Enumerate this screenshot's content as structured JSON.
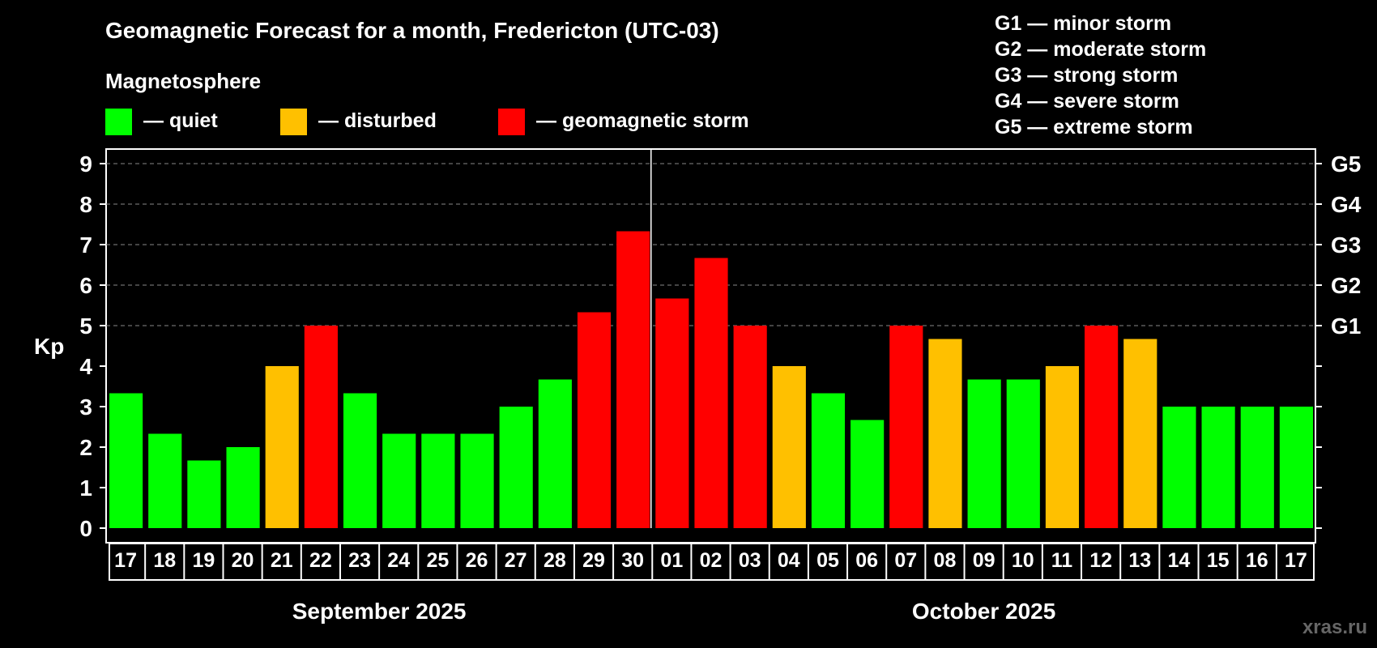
{
  "chart_data": {
    "type": "bar",
    "title": "Geomagnetic Forecast for a month, Fredericton (UTC-03)",
    "legend": {
      "heading": "Magnetosphere",
      "items": [
        {
          "label": "— quiet",
          "color": "#00ff00",
          "level": "quiet"
        },
        {
          "label": "— disturbed",
          "color": "#ffc000",
          "level": "disturbed"
        },
        {
          "label": "— geomagnetic storm",
          "color": "#ff0000",
          "level": "storm"
        }
      ]
    },
    "storm_scale": [
      "G1 — minor storm",
      "G2 — moderate storm",
      "G3 — strong storm",
      "G4 — severe storm",
      "G5 — extreme storm"
    ],
    "ylabel": "Kp",
    "ylim": [
      0,
      9
    ],
    "yticks": [
      "0",
      "1",
      "2",
      "3",
      "4",
      "5",
      "6",
      "7",
      "8",
      "9"
    ],
    "right_axis_labels": [
      {
        "kp": 5,
        "label": "G1"
      },
      {
        "kp": 6,
        "label": "G2"
      },
      {
        "kp": 7,
        "label": "G3"
      },
      {
        "kp": 8,
        "label": "G4"
      },
      {
        "kp": 9,
        "label": "G5"
      }
    ],
    "grid_levels": [
      5,
      6,
      7,
      8,
      9
    ],
    "categories": [
      "17",
      "18",
      "19",
      "20",
      "21",
      "22",
      "23",
      "24",
      "25",
      "26",
      "27",
      "28",
      "29",
      "30",
      "01",
      "02",
      "03",
      "04",
      "05",
      "06",
      "07",
      "08",
      "09",
      "10",
      "11",
      "12",
      "13",
      "14",
      "15",
      "16",
      "17"
    ],
    "values": [
      3.33,
      2.33,
      1.67,
      2.0,
      4.0,
      5.0,
      3.33,
      2.33,
      2.33,
      2.33,
      3.0,
      3.67,
      5.33,
      7.33,
      5.67,
      6.67,
      5.0,
      4.0,
      3.33,
      2.67,
      5.0,
      4.67,
      3.67,
      3.67,
      4.0,
      5.0,
      4.67,
      3.0,
      3.0,
      3.0,
      3.0
    ],
    "levels": [
      "quiet",
      "quiet",
      "quiet",
      "quiet",
      "disturbed",
      "storm",
      "quiet",
      "quiet",
      "quiet",
      "quiet",
      "quiet",
      "quiet",
      "storm",
      "storm",
      "storm",
      "storm",
      "storm",
      "disturbed",
      "quiet",
      "quiet",
      "storm",
      "disturbed",
      "quiet",
      "quiet",
      "disturbed",
      "storm",
      "disturbed",
      "quiet",
      "quiet",
      "quiet",
      "quiet"
    ],
    "months": [
      {
        "label": "September 2025",
        "start_index": 0,
        "end_index": 13
      },
      {
        "label": "October 2025",
        "start_index": 14,
        "end_index": 30
      }
    ],
    "month_divider_after_index": 13
  },
  "watermark": "xras.ru"
}
